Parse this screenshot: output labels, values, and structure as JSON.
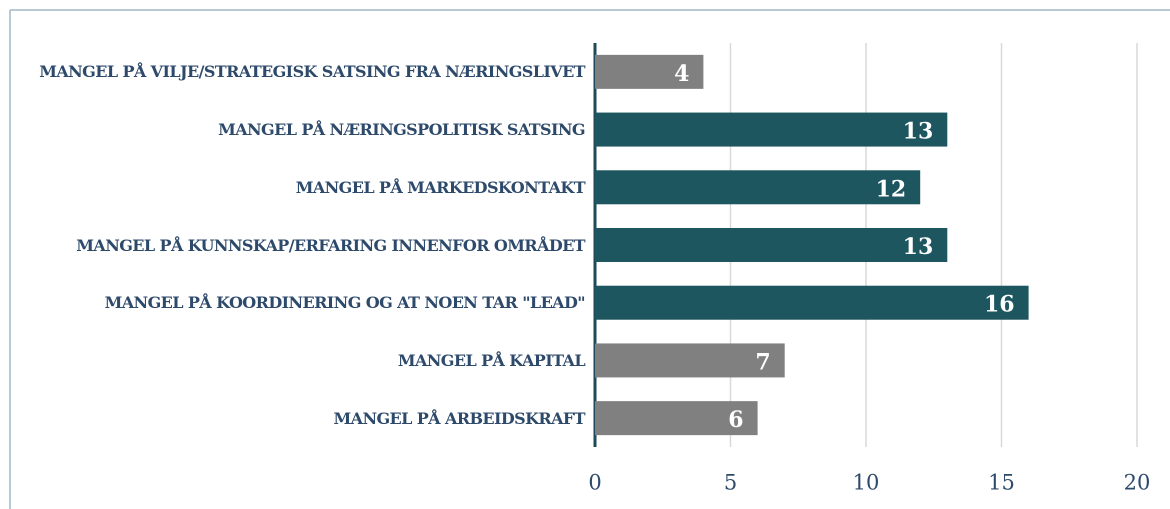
{
  "chart_data": {
    "type": "barh",
    "categories": [
      "MANGEL PÅ VILJE/STRATEGISK SATSING FRA NÆRINGSLIVET",
      "MANGEL PÅ NÆRINGSPOLITISK SATSING",
      "MANGEL PÅ MARKEDSKONTAKT",
      "MANGEL PÅ KUNNSKAP/ERFARING INNENFOR OMRÅDET",
      "MANGEL PÅ KOORDINERING OG AT NOEN TAR \"LEAD\"",
      "MANGEL PÅ KAPITAL",
      "MANGEL PÅ ARBEIDSKRAFT"
    ],
    "values": [
      4,
      13,
      12,
      13,
      16,
      7,
      6
    ],
    "colors": [
      "#808080",
      "#1e5660",
      "#1e5660",
      "#1e5660",
      "#1e5660",
      "#808080",
      "#808080"
    ],
    "xlim": [
      0,
      20
    ],
    "xticks": [
      0,
      5,
      10,
      15,
      20
    ],
    "grid": true
  }
}
